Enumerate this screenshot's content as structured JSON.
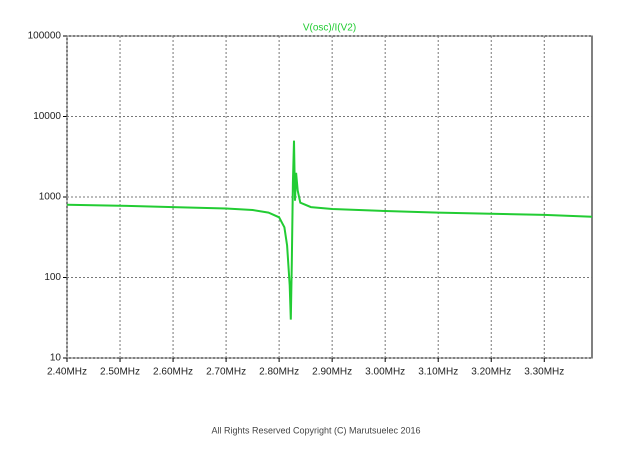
{
  "chart_data": {
    "type": "line",
    "log_y": true,
    "grid": true,
    "series": [
      {
        "name": "V(osc)/I(V2)",
        "color": "#22cc33",
        "x": [
          2.4,
          2.5,
          2.6,
          2.7,
          2.75,
          2.78,
          2.8,
          2.81,
          2.815,
          2.82,
          2.822,
          2.824,
          2.826,
          2.828,
          2.83,
          2.832,
          2.835,
          2.84,
          2.86,
          2.9,
          3.0,
          3.1,
          3.2,
          3.3,
          3.39
        ],
        "values": [
          800,
          780,
          750,
          720,
          690,
          640,
          560,
          420,
          250,
          80,
          30,
          150,
          1500,
          5000,
          900,
          2000,
          1200,
          850,
          750,
          710,
          670,
          640,
          620,
          600,
          570
        ]
      }
    ],
    "xlim": [
      2.4,
      3.39
    ],
    "xticks": [
      {
        "value": 2.4,
        "label": "2.40MHz"
      },
      {
        "value": 2.5,
        "label": "2.50MHz"
      },
      {
        "value": 2.6,
        "label": "2.60MHz"
      },
      {
        "value": 2.7,
        "label": "2.70MHz"
      },
      {
        "value": 2.8,
        "label": "2.80MHz"
      },
      {
        "value": 2.9,
        "label": "2.90MHz"
      },
      {
        "value": 3.0,
        "label": "3.00MHz"
      },
      {
        "value": 3.1,
        "label": "3.10MHz"
      },
      {
        "value": 3.2,
        "label": "3.20MHz"
      },
      {
        "value": 3.3,
        "label": "3.30MHz"
      }
    ],
    "ylim": [
      10,
      100000
    ],
    "yticks": [
      10,
      100,
      1000,
      10000,
      100000
    ]
  },
  "footer": "All Rights Reserved Copyright (C) Marutsuelec  2016"
}
